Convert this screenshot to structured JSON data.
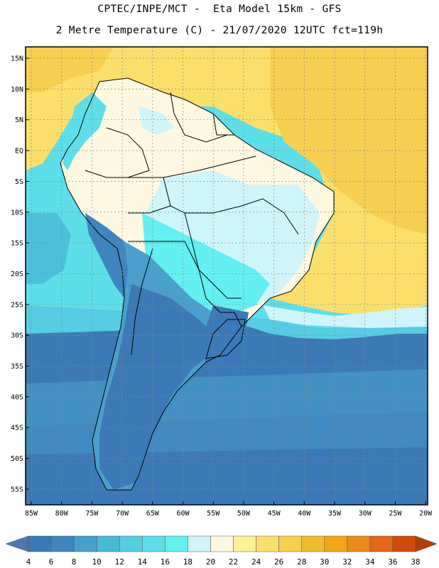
{
  "header": {
    "line1": "CPTEC/INPE/MCT -  Eta Model 15km - GFS",
    "line2": "2 Metre Temperature (C) - 21/07/2020 12UTC fct=119h"
  },
  "map": {
    "lat_labels": [
      "15N",
      "10N",
      "5N",
      "EQ",
      "5S",
      "10S",
      "15S",
      "20S",
      "25S",
      "30S",
      "35S",
      "40S",
      "45S",
      "50S",
      "55S"
    ],
    "lon_labels": [
      "85W",
      "80W",
      "75W",
      "70W",
      "65W",
      "60W",
      "55W",
      "50W",
      "45W",
      "40W",
      "35W",
      "30W",
      "25W",
      "20W"
    ]
  },
  "colorbar": {
    "labels": [
      "4",
      "6",
      "8",
      "10",
      "12",
      "14",
      "16",
      "18",
      "20",
      "22",
      "24",
      "26",
      "28",
      "30",
      "32",
      "34",
      "36",
      "38"
    ],
    "colors": [
      "#4a77b5",
      "#3b7ab6",
      "#3f86c0",
      "#45a0cc",
      "#4ab8d8",
      "#55cce3",
      "#5ddfe9",
      "#63f0f0",
      "#cff5fa",
      "#fef8e1",
      "#fdf095",
      "#fbdf6b",
      "#f7cf51",
      "#f0bd2e",
      "#f0a711",
      "#e98d18",
      "#e3681b",
      "#d44a0c",
      "#b93a05"
    ]
  }
}
